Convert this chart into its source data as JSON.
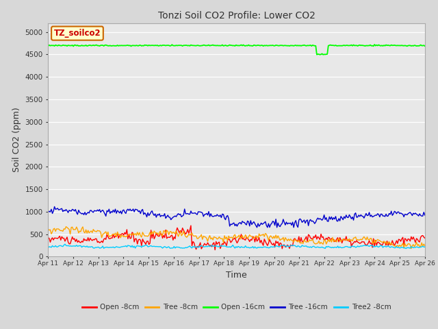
{
  "title": "Tonzi Soil CO2 Profile: Lower CO2",
  "xlabel": "Time",
  "ylabel": "Soil CO2 (ppm)",
  "ylim": [
    0,
    5200
  ],
  "yticks": [
    0,
    500,
    1000,
    1500,
    2000,
    2500,
    3000,
    3500,
    4000,
    4500,
    5000
  ],
  "background_color": "#d8d8d8",
  "plot_bg_color": "#e8e8e8",
  "legend_label_bg": "#ffffcc",
  "legend_label_text": "TZ_soilco2",
  "legend_label_color": "#cc0000",
  "legend_label_edgecolor": "#cc6600",
  "series": {
    "open_8cm": {
      "color": "#ff0000",
      "label": "Open -8cm"
    },
    "tree_8cm": {
      "color": "#ffa500",
      "label": "Tree -8cm"
    },
    "open_16cm": {
      "color": "#00ff00",
      "label": "Open -16cm"
    },
    "tree_16cm": {
      "color": "#0000cc",
      "label": "Tree -16cm"
    },
    "tree2_8cm": {
      "color": "#00ccff",
      "label": "Tree2 -8cm"
    }
  },
  "n_points": 360,
  "x_start": 11,
  "x_end": 26,
  "xtick_positions": [
    11,
    12,
    13,
    14,
    15,
    16,
    17,
    18,
    19,
    20,
    21,
    22,
    23,
    24,
    25,
    26
  ],
  "xtick_labels": [
    "Apr 11",
    "Apr 12",
    "Apr 13",
    "Apr 14",
    "Apr 15",
    "Apr 16",
    "Apr 17",
    "Apr 18",
    "Apr 19",
    "Apr 20",
    "Apr 21",
    "Apr 22",
    "Apr 23",
    "Apr 24",
    "Apr 25",
    "Apr 26"
  ]
}
